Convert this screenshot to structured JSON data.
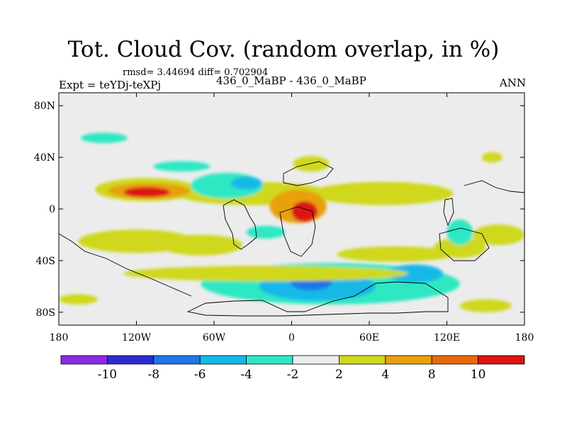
{
  "chart_data": {
    "type": "heatmap",
    "title": "Tot. Cloud Cov. (random overlap, in %)",
    "stats_line": "rmsd= 3.44694 diff= 0.702904",
    "expt_label": "Expt = teYDj-teXPj",
    "subtitle": "436_0_MaBP - 436_0_MaBP",
    "season": "ANN",
    "xlim": [
      -180,
      180
    ],
    "ylim": [
      -90,
      90
    ],
    "x_ticks": [
      {
        "value": -180,
        "label": "180"
      },
      {
        "value": -120,
        "label": "120W"
      },
      {
        "value": -60,
        "label": "60W"
      },
      {
        "value": 0,
        "label": "0"
      },
      {
        "value": 60,
        "label": "60E"
      },
      {
        "value": 120,
        "label": "120E"
      },
      {
        "value": 180,
        "label": "180"
      }
    ],
    "y_ticks": [
      {
        "value": 80,
        "label": "80N"
      },
      {
        "value": 40,
        "label": "40N"
      },
      {
        "value": 0,
        "label": "0"
      },
      {
        "value": -40,
        "label": "40S"
      },
      {
        "value": -80,
        "label": "80S"
      }
    ],
    "colorbar": {
      "bins": [
        {
          "color": "#8a2be2"
        },
        {
          "color": "#2d2ad0"
        },
        {
          "color": "#1f78e6"
        },
        {
          "color": "#14b8e8"
        },
        {
          "color": "#2ee8c4"
        },
        {
          "color": "#ececec"
        },
        {
          "color": "#cfd81c"
        },
        {
          "color": "#e8a010"
        },
        {
          "color": "#e86a0a"
        },
        {
          "color": "#dc1414"
        }
      ],
      "labels": [
        {
          "after_bin": 1,
          "text": "-10"
        },
        {
          "after_bin": 2,
          "text": "-8"
        },
        {
          "after_bin": 3,
          "text": "-6"
        },
        {
          "after_bin": 4,
          "text": "-4"
        },
        {
          "after_bin": 5,
          "text": "-2"
        },
        {
          "after_bin": 6,
          "text": "2"
        },
        {
          "after_bin": 7,
          "text": "4"
        },
        {
          "after_bin": 8,
          "text": "8"
        },
        {
          "after_bin": 9,
          "text": "10"
        }
      ]
    },
    "anomaly_regions": [
      {
        "lon": -112,
        "lat": 15,
        "rlon": 40,
        "rlat": 9,
        "value": 3
      },
      {
        "lon": -30,
        "lat": 12,
        "rlon": 60,
        "rlat": 9,
        "value": 3
      },
      {
        "lon": 70,
        "lat": 12,
        "rlon": 55,
        "rlat": 9,
        "value": 3
      },
      {
        "lon": -110,
        "lat": 14,
        "rlon": 32,
        "rlat": 6,
        "value": 5
      },
      {
        "lon": -112,
        "lat": 13,
        "rlon": 18,
        "rlat": 4,
        "value": 10
      },
      {
        "lon": -120,
        "lat": -25,
        "rlon": 45,
        "rlat": 9,
        "value": 3
      },
      {
        "lon": -70,
        "lat": -28,
        "rlon": 32,
        "rlat": 8,
        "value": 3
      },
      {
        "lon": 5,
        "lat": 2,
        "rlon": 22,
        "rlat": 13,
        "value": 5
      },
      {
        "lon": 10,
        "lat": -2,
        "rlon": 10,
        "rlat": 8,
        "value": 10
      },
      {
        "lon": 80,
        "lat": -35,
        "rlon": 45,
        "rlat": 6,
        "value": 3
      },
      {
        "lon": 130,
        "lat": -30,
        "rlon": 20,
        "rlat": 8,
        "value": 3
      },
      {
        "lon": 15,
        "lat": 35,
        "rlon": 14,
        "rlat": 6,
        "value": 3
      },
      {
        "lon": -50,
        "lat": 18,
        "rlon": 28,
        "rlat": 10,
        "value": -3
      },
      {
        "lon": -35,
        "lat": 20,
        "rlon": 12,
        "rlat": 5,
        "value": -6
      },
      {
        "lon": 30,
        "lat": -58,
        "rlon": 100,
        "rlat": 16,
        "value": -3
      },
      {
        "lon": 20,
        "lat": -60,
        "rlon": 45,
        "rlat": 11,
        "value": -6
      },
      {
        "lon": 15,
        "lat": -57,
        "rlon": 16,
        "rlat": 6,
        "value": -8
      },
      {
        "lon": 95,
        "lat": -50,
        "rlon": 22,
        "rlat": 7,
        "value": -6
      },
      {
        "lon": -145,
        "lat": 55,
        "rlon": 18,
        "rlat": 4,
        "value": -3
      },
      {
        "lon": -85,
        "lat": 33,
        "rlon": 22,
        "rlat": 4,
        "value": -3
      },
      {
        "lon": 130,
        "lat": -18,
        "rlon": 10,
        "rlat": 10,
        "value": -3
      },
      {
        "lon": -20,
        "lat": -18,
        "rlon": 15,
        "rlat": 5,
        "value": -3
      },
      {
        "lon": -20,
        "lat": -50,
        "rlon": 110,
        "rlat": 6,
        "value": 3
      },
      {
        "lon": 160,
        "lat": -20,
        "rlon": 20,
        "rlat": 8,
        "value": 3
      },
      {
        "lon": 150,
        "lat": -75,
        "rlon": 20,
        "rlat": 5,
        "value": 3
      },
      {
        "lon": 155,
        "lat": 40,
        "rlon": 8,
        "rlat": 4,
        "value": 3
      },
      {
        "lon": -165,
        "lat": -70,
        "rlon": 15,
        "rlat": 4,
        "value": 3
      }
    ]
  }
}
